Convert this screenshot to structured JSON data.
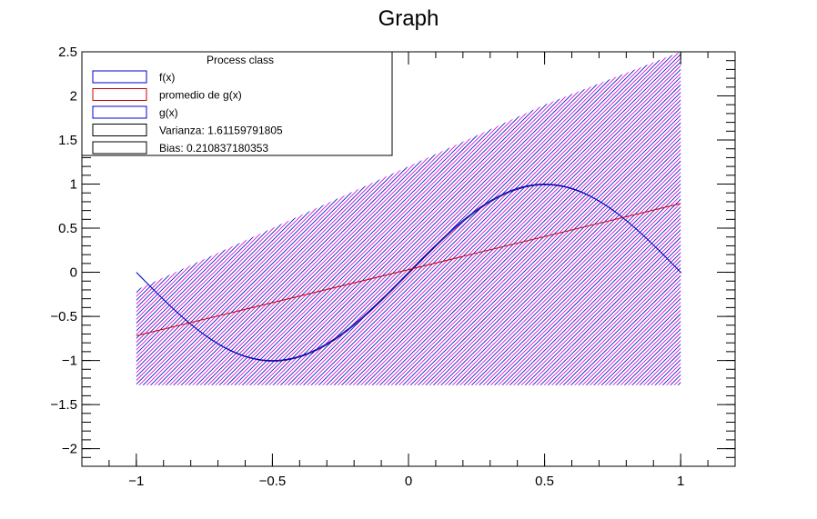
{
  "chart_data": {
    "type": "line",
    "title": "Graph",
    "xlabel": "",
    "ylabel": "",
    "xlim": [
      -1.2,
      1.2
    ],
    "ylim": [
      -2.2,
      2.5
    ],
    "x_ticks": [
      -1,
      -0.5,
      0,
      0.5,
      1
    ],
    "x_tick_labels": [
      "−1",
      "−0.5",
      "0",
      "0.5",
      "1"
    ],
    "y_ticks": [
      -2,
      -1.5,
      -1,
      -0.5,
      0,
      0.5,
      1,
      1.5,
      2,
      2.5
    ],
    "y_tick_labels": [
      "−2",
      "−1.5",
      "−1",
      "−0.5",
      "0",
      "0.5",
      "1",
      "1.5",
      "2",
      "2.5"
    ],
    "grid": false,
    "legend": {
      "placement": "top-left",
      "header": "Process class",
      "entries": [
        {
          "label": "f(x)",
          "color": "#0000cc"
        },
        {
          "label": "promedio de g(x)",
          "color": "#cc0000"
        },
        {
          "label": "g(x)",
          "color": "#0000cc"
        },
        {
          "label": "Varianza: 1.61159791805",
          "color": "#000000"
        },
        {
          "label": "Bias: 0.210837180353",
          "color": "#000000"
        }
      ]
    },
    "series": [
      {
        "function": "sin(pi*x)",
        "color": "#0000cc",
        "x": [
          -1,
          -0.95,
          -0.9,
          -0.85,
          -0.8,
          -0.75,
          -0.7,
          -0.65,
          -0.6,
          -0.55,
          -0.5,
          -0.45,
          -0.4,
          -0.35,
          -0.3,
          -0.25,
          -0.2,
          -0.15,
          -0.1,
          -0.05,
          0,
          0.05,
          0.1,
          0.15,
          0.2,
          0.25,
          0.3,
          0.35,
          0.4,
          0.45,
          0.5,
          0.55,
          0.6,
          0.65,
          0.7,
          0.75,
          0.8,
          0.85,
          0.9,
          0.95,
          1
        ],
        "y": [
          0,
          -0.156,
          -0.309,
          -0.454,
          -0.588,
          -0.707,
          -0.809,
          -0.891,
          -0.951,
          -0.988,
          -1,
          -0.988,
          -0.951,
          -0.891,
          -0.809,
          -0.707,
          -0.588,
          -0.454,
          -0.309,
          -0.156,
          0,
          0.156,
          0.309,
          0.454,
          0.588,
          0.707,
          0.809,
          0.891,
          0.951,
          0.988,
          1,
          0.988,
          0.951,
          0.891,
          0.809,
          0.707,
          0.588,
          0.454,
          0.309,
          0.156,
          0
        ]
      },
      {
        "color": "#cc0000",
        "x": [
          -1,
          1
        ],
        "y": [
          -0.72,
          0.78
        ]
      }
    ],
    "band": {
      "color": "#cc00cc",
      "hatch_color": "#0000cc",
      "x": [
        -1,
        -0.5,
        0,
        0.5,
        1
      ],
      "upper": [
        -0.2,
        0.5,
        1.2,
        1.9,
        2.5
      ],
      "lower": [
        -1.28,
        -1.28,
        -1.28,
        -1.28,
        -1.28
      ]
    }
  }
}
